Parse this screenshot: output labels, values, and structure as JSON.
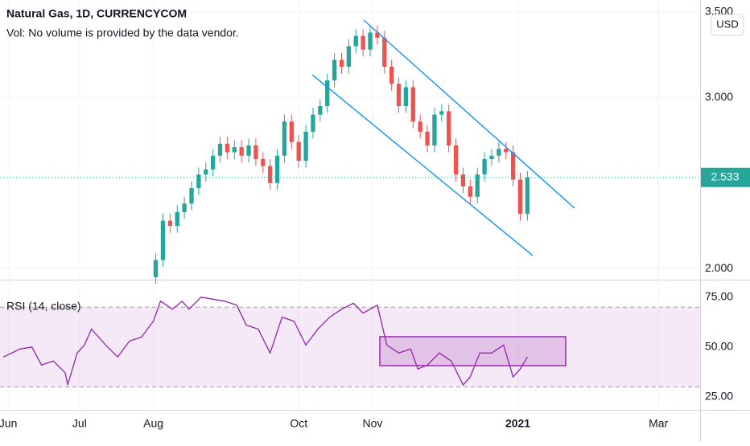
{
  "chart_data": {
    "type": "candlestick",
    "title": "Natural Gas, 1D, CURRENCYCOM",
    "subtitle": "Vol: No volume is provided by the data vendor.",
    "currency": "USD",
    "up_color": "#26a69a",
    "down_color": "#ef5350",
    "grid": true,
    "xlim": [
      -3.4,
      290.5
    ],
    "xticks": [
      {
        "value": 0,
        "label": "Jun"
      },
      {
        "value": 30,
        "label": "Jul"
      },
      {
        "value": 61,
        "label": "Aug"
      },
      {
        "value": 122,
        "label": "Oct"
      },
      {
        "value": 153,
        "label": "Nov"
      },
      {
        "value": 214,
        "label": "2021"
      },
      {
        "value": 273,
        "label": "Mar"
      }
    ],
    "ylim": [
      1.94,
      3.57
    ],
    "yticks": [
      {
        "value": 2,
        "label": "2.000"
      },
      {
        "value": 3,
        "label": "3.000"
      },
      {
        "value": 3.5,
        "label": "3.500"
      }
    ],
    "x": [
      62,
      65,
      68,
      71,
      74,
      77,
      80,
      83,
      86,
      89,
      92,
      95,
      98,
      101,
      104,
      107,
      110,
      113,
      116,
      119,
      122,
      125,
      128,
      131,
      134,
      137,
      140,
      143,
      146,
      149,
      152,
      155,
      158,
      161,
      164,
      167,
      170,
      173,
      176,
      179,
      182,
      185,
      188,
      191,
      194,
      197,
      200,
      203,
      206,
      209,
      212,
      215,
      218
    ],
    "open": [
      1.95,
      2.05,
      2.28,
      2.25,
      2.33,
      2.38,
      2.47,
      2.55,
      2.58,
      2.66,
      2.73,
      2.68,
      2.71,
      2.66,
      2.72,
      2.64,
      2.6,
      2.5,
      2.66,
      2.86,
      2.74,
      2.63,
      2.8,
      2.9,
      2.95,
      3.1,
      3.22,
      3.18,
      3.3,
      3.36,
      3.28,
      3.38,
      3.35,
      3.18,
      3.08,
      2.95,
      3.06,
      2.86,
      2.8,
      2.72,
      2.9,
      2.92,
      2.72,
      2.55,
      2.48,
      2.42,
      2.55,
      2.64,
      2.66,
      2.7,
      2.68,
      2.52,
      2.32
    ],
    "high": [
      2.09,
      2.32,
      2.32,
      2.37,
      2.42,
      2.51,
      2.59,
      2.62,
      2.7,
      2.77,
      2.77,
      2.75,
      2.75,
      2.76,
      2.76,
      2.68,
      2.64,
      2.7,
      2.9,
      2.9,
      2.78,
      2.84,
      2.94,
      2.99,
      3.14,
      3.26,
      3.26,
      3.34,
      3.4,
      3.4,
      3.42,
      3.42,
      3.39,
      3.22,
      3.12,
      3.1,
      3.1,
      2.9,
      2.84,
      2.94,
      2.96,
      2.96,
      2.76,
      2.59,
      2.52,
      2.59,
      2.68,
      2.7,
      2.74,
      2.74,
      2.72,
      2.56,
      2.57
    ],
    "low": [
      1.91,
      2.01,
      2.21,
      2.21,
      2.29,
      2.34,
      2.43,
      2.51,
      2.54,
      2.62,
      2.64,
      2.64,
      2.62,
      2.62,
      2.6,
      2.56,
      2.46,
      2.46,
      2.62,
      2.7,
      2.59,
      2.59,
      2.76,
      2.86,
      2.91,
      3.06,
      3.14,
      3.14,
      3.26,
      3.24,
      3.24,
      3.31,
      3.14,
      3.04,
      2.91,
      2.91,
      2.82,
      2.76,
      2.68,
      2.68,
      2.86,
      2.68,
      2.51,
      2.44,
      2.38,
      2.38,
      2.51,
      2.6,
      2.62,
      2.64,
      2.48,
      2.28,
      2.28
    ],
    "close": [
      2.05,
      2.28,
      2.25,
      2.33,
      2.38,
      2.47,
      2.55,
      2.58,
      2.66,
      2.73,
      2.68,
      2.71,
      2.66,
      2.72,
      2.64,
      2.6,
      2.5,
      2.66,
      2.86,
      2.74,
      2.63,
      2.8,
      2.9,
      2.95,
      3.1,
      3.22,
      3.18,
      3.3,
      3.36,
      3.28,
      3.38,
      3.35,
      3.18,
      3.08,
      2.95,
      3.06,
      2.86,
      2.8,
      2.72,
      2.9,
      2.92,
      2.72,
      2.55,
      2.48,
      2.42,
      2.55,
      2.64,
      2.66,
      2.7,
      2.68,
      2.52,
      2.32,
      2.533
    ],
    "rsi": {
      "title": "RSI (14, close)",
      "color": "#8e24aa",
      "ylim": [
        18.5,
        83
      ],
      "yticks": [
        {
          "value": 25,
          "label": "25.00"
        },
        {
          "value": 50,
          "label": "50.00"
        },
        {
          "value": 75,
          "label": "75.00"
        }
      ],
      "bands": [
        30,
        70
      ],
      "x": [
        -2,
        5,
        10,
        14,
        19,
        24,
        25,
        29,
        32,
        35,
        41,
        46,
        51,
        56,
        61,
        64,
        69,
        73,
        76,
        81,
        86,
        91,
        96,
        100,
        105,
        110,
        115,
        120,
        125,
        130,
        135,
        140,
        145,
        149,
        155,
        159,
        164,
        169,
        172,
        176,
        181,
        186,
        191,
        194,
        198,
        203,
        208,
        212,
        215,
        218
      ],
      "values": [
        45,
        49,
        50,
        41,
        43,
        37,
        31,
        47,
        51,
        59,
        51,
        45,
        53,
        55,
        63,
        73,
        69,
        73,
        69,
        75,
        74,
        73,
        71,
        61,
        59,
        47,
        65,
        63,
        51,
        59,
        65,
        69,
        72,
        67,
        71,
        51,
        47,
        49,
        39,
        41,
        47,
        43,
        31,
        35,
        47,
        47,
        51,
        35,
        39,
        45
      ]
    }
  }
}
